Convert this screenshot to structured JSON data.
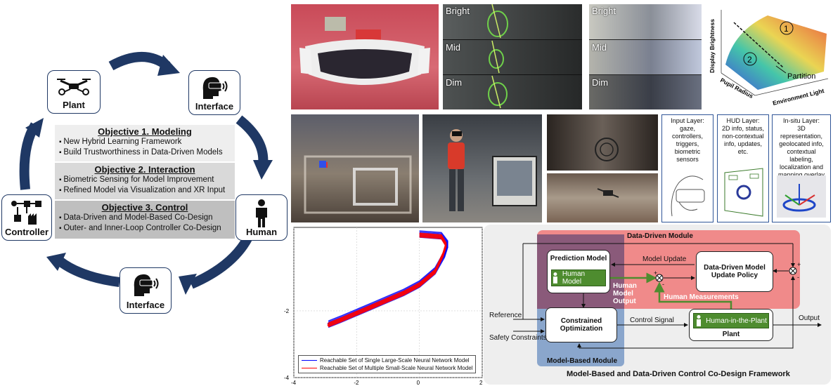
{
  "cycle": {
    "nodes": {
      "plant": "Plant",
      "interface_top": "Interface",
      "human": "Human",
      "interface_bottom": "Interface",
      "controller": "Controller"
    },
    "objectives": [
      {
        "title": "Objective 1. Modeling",
        "items": [
          "New Hybrid Learning Framework",
          "Build Trustworthiness in Data-Driven Models"
        ]
      },
      {
        "title": "Objective 2. Interaction",
        "items": [
          "Biometric Sensing for Model Improvement",
          "Refined Model via Visualization and XR Input"
        ]
      },
      {
        "title": "Objective 3. Control",
        "items": [
          "Data-Driven and Model-Based Co-Design",
          "Outer- and Inner-Loop Controller Co-Design"
        ]
      }
    ]
  },
  "photos": {
    "eye_tags": [
      "Bright",
      "Mid",
      "Dim"
    ],
    "scene_tags": [
      "Bright",
      "Mid",
      "Dim"
    ]
  },
  "surface_plot": {
    "zlabel": "Display Brightness",
    "xlabel": "Pupil Radius",
    "ylabel": "Environment Light",
    "region_1": "1",
    "region_2": "2",
    "partition": "Partition"
  },
  "layers": [
    {
      "text": "Input Layer:\ngaze, controllers, triggers, biometric sensors"
    },
    {
      "text": "HUD Layer:\n2D info, status, non-contextual info, updates, etc."
    },
    {
      "text": "In-situ Layer:\n3D representation, geolocated info, contextual labeling, localization and mapping overlay"
    }
  ],
  "chart_data": {
    "type": "line",
    "xlim": [
      -4,
      2
    ],
    "ylim": [
      -4,
      0.5
    ],
    "xticks": [
      "-4",
      "-2",
      "0",
      "2"
    ],
    "yticks": [
      "-2",
      "-4"
    ],
    "grid": true,
    "legend_position": "bottom-right",
    "series": [
      {
        "name": "Reachable Set of Single Large-Scale Neural Network Model",
        "color": "#0000ff",
        "x": [
          -2.9,
          -2.5,
          -2.0,
          -1.5,
          -1.0,
          -0.5,
          0.0,
          0.5,
          0.8,
          0.9,
          0.7,
          0.0
        ],
        "y": [
          -2.4,
          -2.25,
          -2.05,
          -1.85,
          -1.65,
          -1.45,
          -1.2,
          -0.8,
          -0.3,
          0.0,
          0.25,
          0.3
        ]
      },
      {
        "name": "Reachable Set of Multiple Small-Scale Neural Network Model",
        "color": "#ff0000",
        "x": [
          -2.9,
          -2.5,
          -2.0,
          -1.5,
          -1.0,
          -0.5,
          0.0,
          0.5,
          0.75,
          0.85,
          0.7,
          0.0
        ],
        "y": [
          -2.42,
          -2.27,
          -2.07,
          -1.87,
          -1.67,
          -1.47,
          -1.22,
          -0.82,
          -0.32,
          -0.02,
          0.22,
          0.27
        ]
      }
    ]
  },
  "framework": {
    "title": "Model-Based and Data-Driven Control Co-Design Framework",
    "data_driven_module": "Data-Driven Module",
    "model_based_module": "Model-Based Module",
    "prediction_model": "Prediction Model",
    "human_model": "Human Model",
    "data_driven_policy": "Data-Driven Model Update Policy",
    "constrained_optimization": "Constrained Optimization",
    "human_in_the_plant": "Human-in-the-Plant",
    "plant": "Plant",
    "model_update": "Model Update",
    "human_model_output": "Human Model Output",
    "human_measurements": "Human Measurements",
    "reference": "Reference",
    "safety_constraints": "Safety Constraints",
    "control_signal": "Control Signal",
    "output": "Output",
    "plus": "+",
    "minus": "-"
  },
  "colors": {
    "navy": "#1f3864",
    "data_driven": "#f08a8a",
    "model_based": "#8aa6cc",
    "overlap": "#8a5a7a",
    "green": "#4e8c2f",
    "panel_bg": "#eeeeee"
  }
}
